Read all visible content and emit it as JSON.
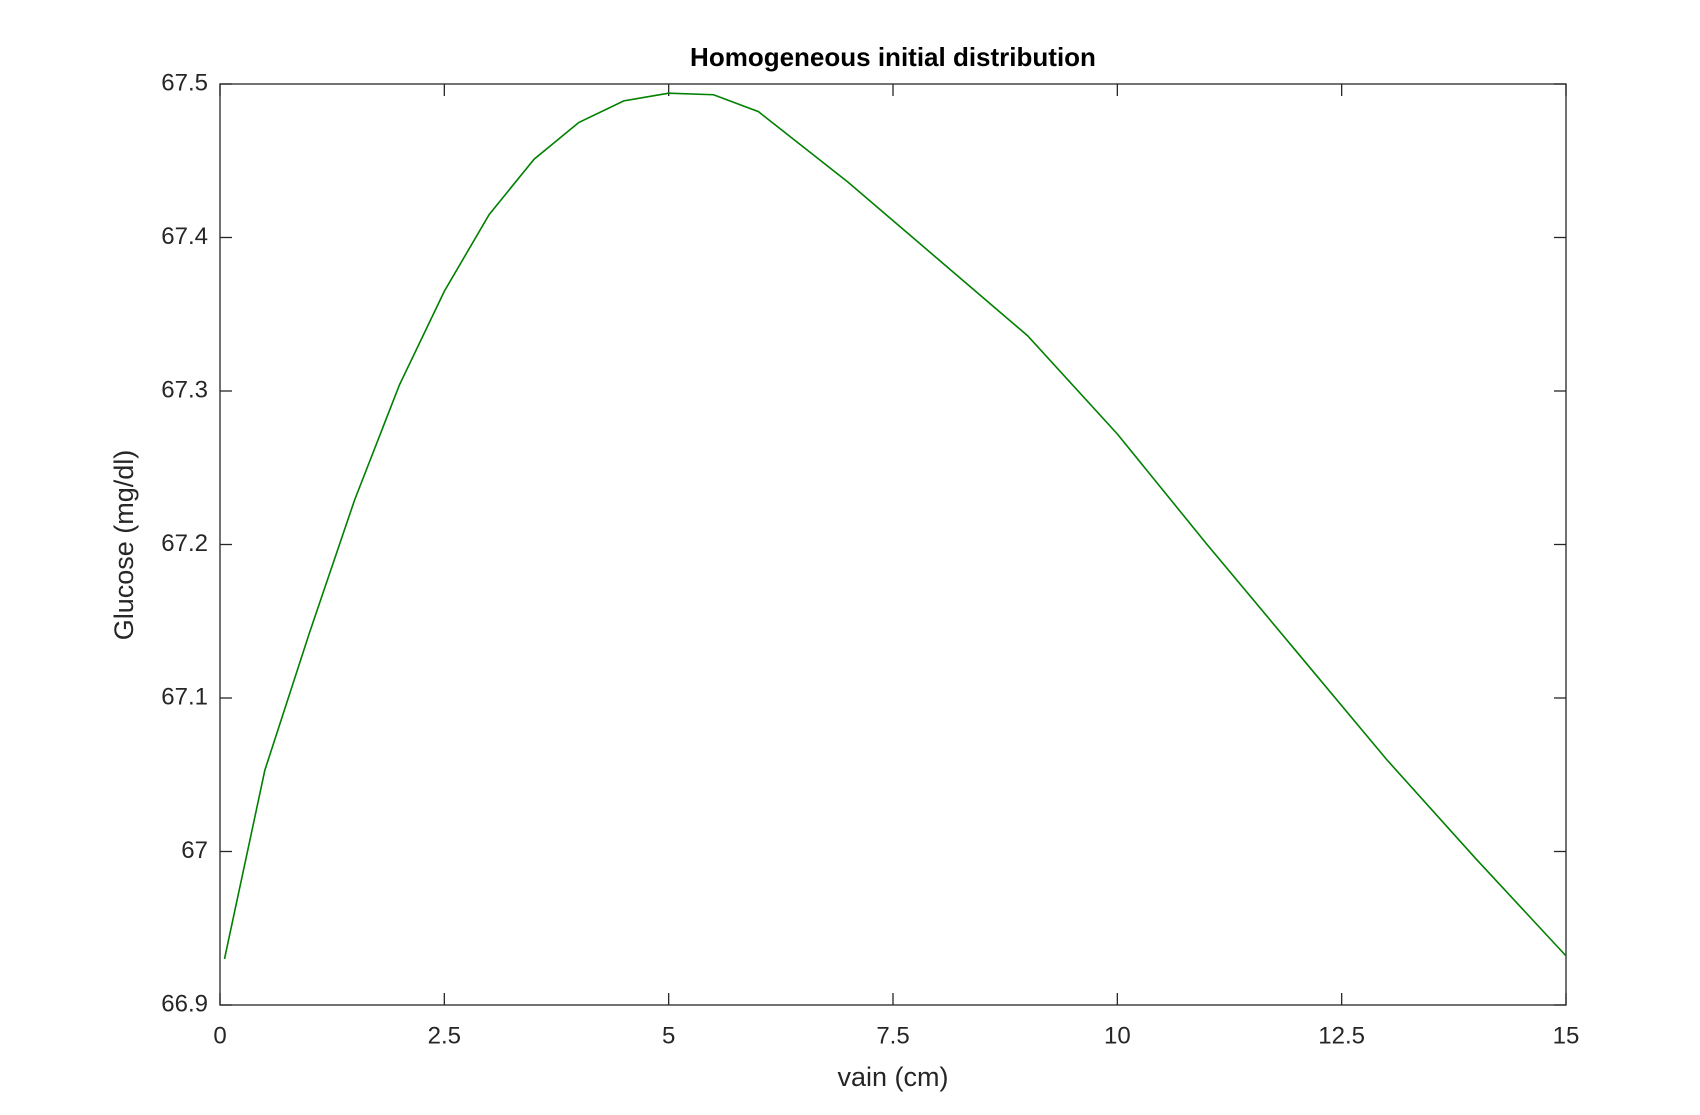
{
  "chart_data": {
    "type": "line",
    "title": "Homogeneous initial distribution",
    "x_label": "vain (cm)",
    "y_label": "Glucose (mg/dl)",
    "x": [
      0.05,
      0.5,
      1,
      1.5,
      2,
      2.5,
      3,
      3.5,
      4,
      4.5,
      5,
      5.5,
      6,
      7,
      8,
      9,
      10,
      11,
      12,
      13,
      14,
      15
    ],
    "series": [
      {
        "color": "#008000",
        "values": [
          66.93,
          67.053,
          67.143,
          67.229,
          67.304,
          67.365,
          67.415,
          67.451,
          67.475,
          67.489,
          67.494,
          67.493,
          67.482,
          67.436,
          67.386,
          67.336,
          67.272,
          67.2,
          67.13,
          67.06,
          66.995,
          66.932
        ]
      }
    ],
    "xlim": [
      0,
      15
    ],
    "ylim": [
      66.9,
      67.5
    ],
    "xticks": [
      0,
      2.5,
      5,
      7.5,
      10,
      12.5,
      15
    ],
    "yticks": [
      66.9,
      67,
      67.1,
      67.2,
      67.3,
      67.4,
      67.5
    ]
  }
}
